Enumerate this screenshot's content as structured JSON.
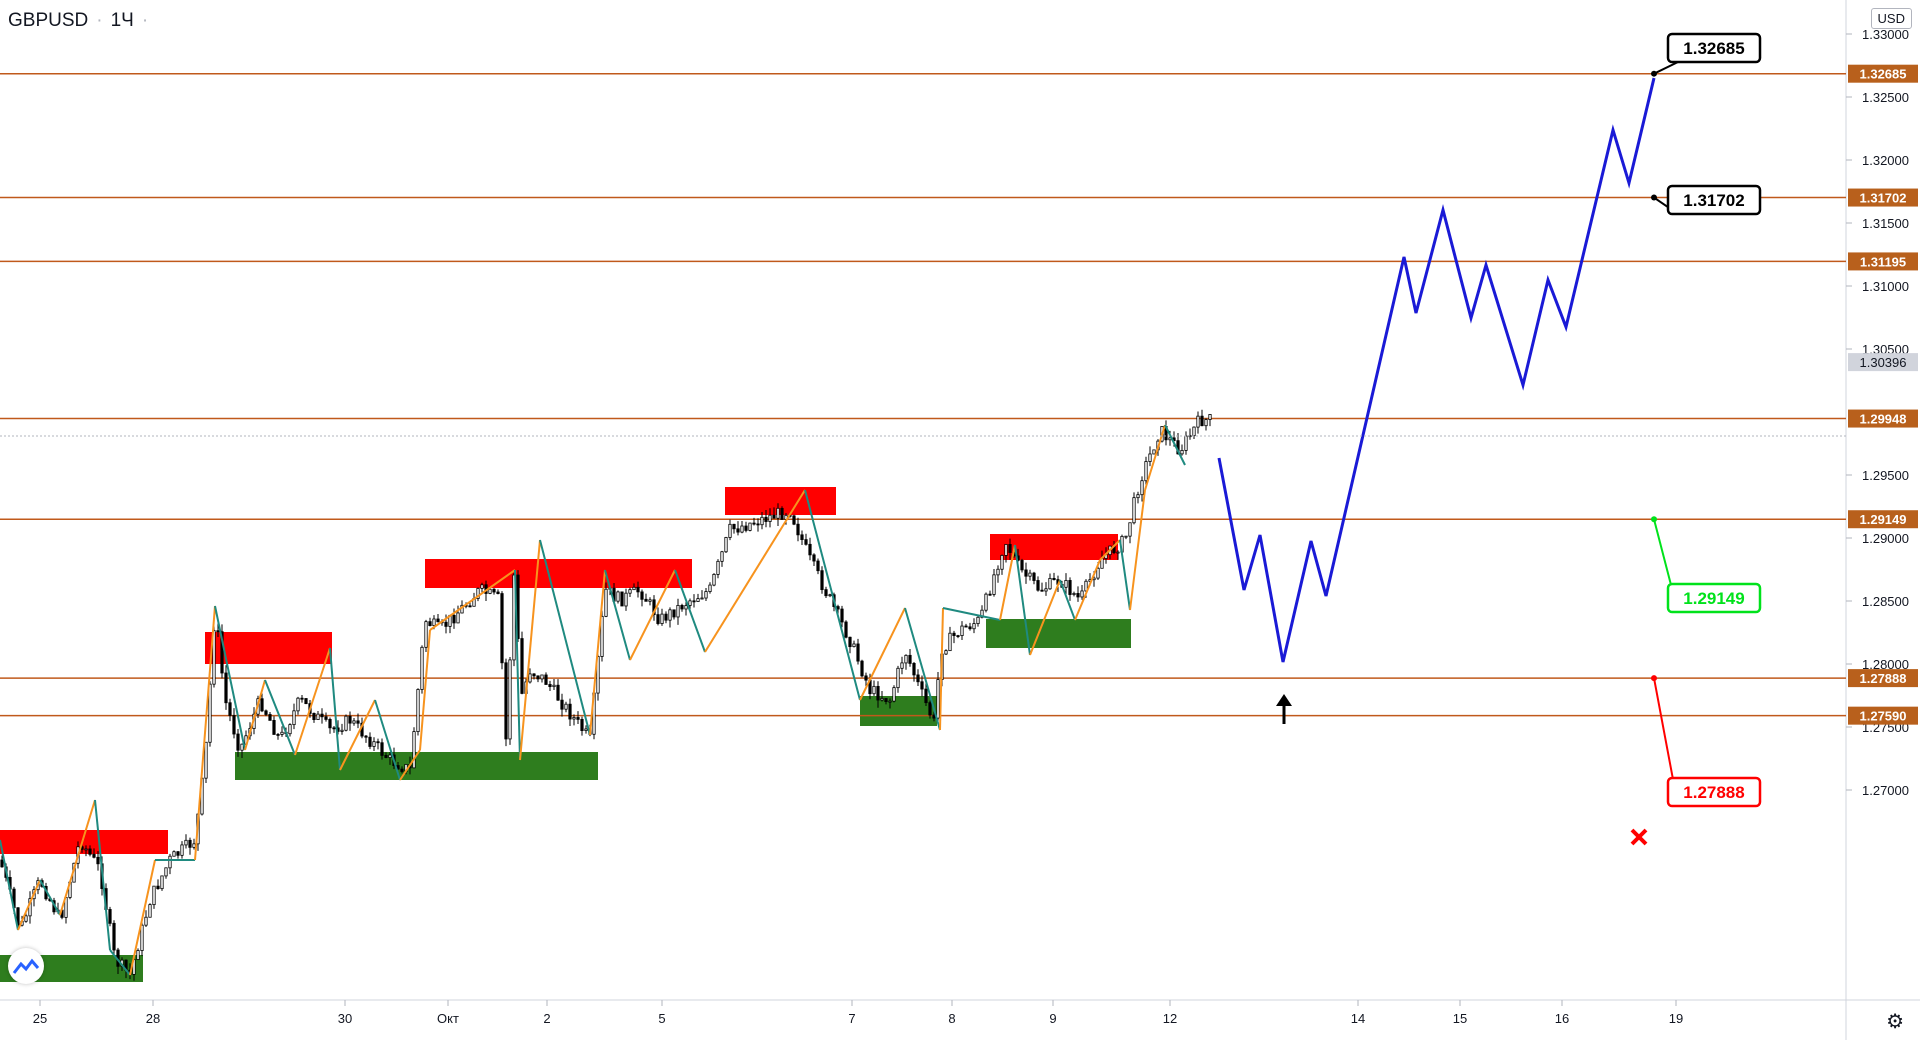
{
  "header": {
    "symbol": "GBPUSD",
    "interval": "1Ч"
  },
  "currency": "USD",
  "price_axis": {
    "ticks": [
      "1.33000",
      "1.32500",
      "1.32000",
      "1.31500",
      "1.31000",
      "1.30500",
      "1.29500",
      "1.29000",
      "1.28500",
      "1.28000",
      "1.27500",
      "1.27000"
    ],
    "current_price": "1.30396"
  },
  "time_axis": {
    "labels": [
      "25",
      "28",
      "30",
      "Окт",
      "2",
      "5",
      "7",
      "8",
      "9",
      "12",
      "14",
      "15",
      "16",
      "19"
    ]
  },
  "levels": [
    {
      "price": "1.32685",
      "callout": "1.32685",
      "callout_color": "#000000"
    },
    {
      "price": "1.31702",
      "callout": "1.31702",
      "callout_color": "#000000"
    },
    {
      "price": "1.31195"
    },
    {
      "price": "1.29948"
    },
    {
      "price": "1.29149",
      "callout": "1.29149",
      "callout_color": "#00e21b"
    },
    {
      "price": "1.27888",
      "callout": "1.27888",
      "callout_color": "#ff0000"
    },
    {
      "price": "1.27590"
    }
  ],
  "colors": {
    "level_line": "#c0591b",
    "level_badge": "#b8601c",
    "forecast": "#1a1ad6",
    "supply_zone": "#ff0000",
    "demand_zone": "#2e7d1e",
    "zigzag_up": "#f7931e",
    "zigzag_down": "#1f8a80",
    "current_badge": "#d1d4dc"
  },
  "icons": {
    "logo": "tradingview-logo-icon",
    "settings": "gear-icon",
    "arrow": "up-arrow-icon",
    "stop": "x-mark-icon"
  }
}
